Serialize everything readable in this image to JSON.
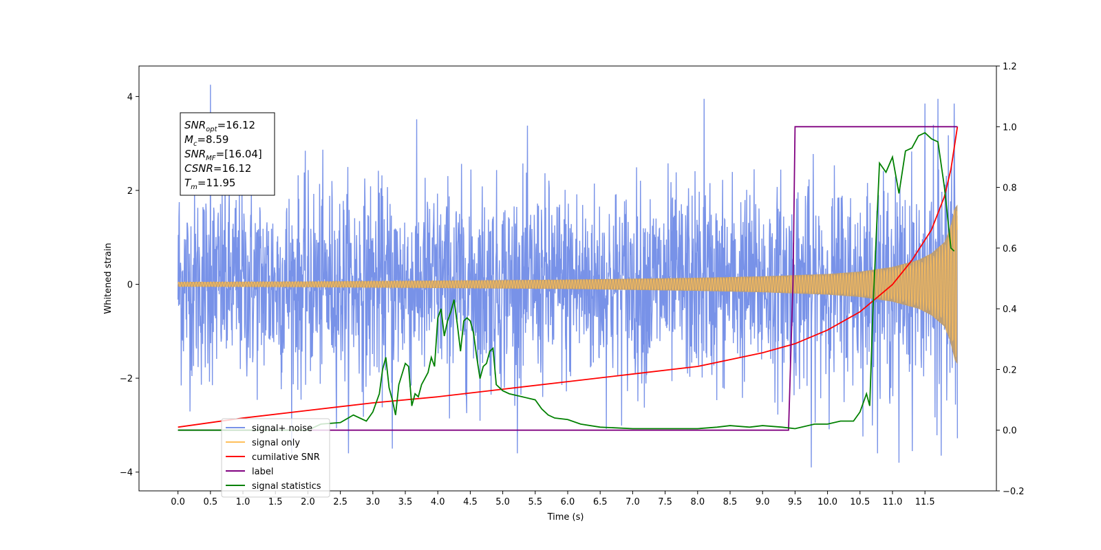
{
  "chart_data": {
    "type": "line",
    "xlabel": "Time (s)",
    "ylabel": "Whitened strain",
    "xlim": [
      -0.6,
      12.6
    ],
    "ylim": [
      -4.4,
      4.65
    ],
    "y2lim": [
      -0.2,
      1.2
    ],
    "x_ticks": [
      0.0,
      0.5,
      1.0,
      1.5,
      2.0,
      2.5,
      3.0,
      3.5,
      4.0,
      4.5,
      5.0,
      5.5,
      6.0,
      6.5,
      7.0,
      7.5,
      8.0,
      8.5,
      9.0,
      9.5,
      10.0,
      10.5,
      11.0,
      11.5
    ],
    "x_tick_labels": [
      "0.0",
      "0.5",
      "1.0",
      "1.5",
      "2.0",
      "2.5",
      "3.0",
      "3.5",
      "4.0",
      "4.5",
      "5.0",
      "5.5",
      "6.0",
      "6.5",
      "7.0",
      "7.5",
      "8.0",
      "8.5",
      "9.0",
      "9.5",
      "10.0",
      "10.5",
      "11.0",
      "11.5"
    ],
    "y_ticks": [
      -4,
      -2,
      0,
      2,
      4
    ],
    "y_tick_labels": [
      "−4",
      "−2",
      "0",
      "2",
      "4"
    ],
    "y2_ticks": [
      -0.2,
      0.0,
      0.2,
      0.4,
      0.6,
      0.8,
      1.0,
      1.2
    ],
    "y2_tick_labels": [
      "−0.2",
      "0.0",
      "0.2",
      "0.4",
      "0.6",
      "0.8",
      "1.0",
      "1.2"
    ],
    "grid": false,
    "legend_position": "lower-left",
    "annotation": {
      "lines": [
        {
          "base": "SNR",
          "sub": "opt",
          "rest": "=16.12"
        },
        {
          "base": "M",
          "sub": "c",
          "rest": "=8.59"
        },
        {
          "base": "SNR",
          "sub": "MF",
          "rest": "=[16.04]"
        },
        {
          "base": "CSNR",
          "sub": "",
          "rest": "=16.12"
        },
        {
          "base": "T",
          "sub": "m",
          "rest": "=11.95"
        }
      ]
    },
    "series": [
      {
        "name": "signal+ noise",
        "color": "#7892e8",
        "axis": "left",
        "description_noise_sigma": 1.0,
        "x_range": [
          0.0,
          12.0
        ],
        "peaks": [
          [
            0.5,
            4.25
          ],
          [
            0.02,
            1.75
          ],
          [
            3.3,
            -3.5
          ],
          [
            9.75,
            -3.9
          ],
          [
            11.1,
            -3.8
          ],
          [
            11.75,
            -3.65
          ],
          [
            11.95,
            -3.45
          ],
          [
            11.7,
            3.95
          ],
          [
            11.95,
            3.85
          ],
          [
            8.1,
            3.95
          ],
          [
            11.5,
            3.85
          ]
        ]
      },
      {
        "name": "signal only",
        "color": "#ffbf5a",
        "axis": "left",
        "envelope": {
          "x": [
            0.0,
            2.0,
            4.0,
            6.0,
            8.0,
            9.0,
            10.0,
            10.5,
            11.0,
            11.4,
            11.6,
            11.8,
            11.9,
            11.95,
            12.0
          ],
          "amplitude": [
            0.05,
            0.06,
            0.08,
            0.1,
            0.14,
            0.17,
            0.22,
            0.27,
            0.37,
            0.52,
            0.66,
            0.9,
            1.25,
            1.6,
            1.7
          ]
        }
      },
      {
        "name": "cumilative SNR",
        "color": "#ff0000",
        "axis": "right",
        "x": [
          0.0,
          1.0,
          2.0,
          3.0,
          4.0,
          5.0,
          6.0,
          7.0,
          8.0,
          9.0,
          9.5,
          10.0,
          10.5,
          11.0,
          11.3,
          11.6,
          11.8,
          11.9,
          11.95,
          12.0
        ],
        "y": [
          0.01,
          0.04,
          0.065,
          0.09,
          0.11,
          0.135,
          0.16,
          0.185,
          0.21,
          0.255,
          0.285,
          0.33,
          0.39,
          0.48,
          0.56,
          0.66,
          0.77,
          0.86,
          0.93,
          1.0
        ]
      },
      {
        "name": "label",
        "color": "#800080",
        "axis": "right",
        "x": [
          0.0,
          9.4,
          9.47,
          9.5,
          12.0
        ],
        "y": [
          0.0,
          0.0,
          0.5,
          1.0,
          1.0
        ]
      },
      {
        "name": "signal statistics",
        "color": "#008000",
        "axis": "right",
        "x": [
          0.0,
          1.0,
          2.0,
          2.2,
          2.5,
          2.7,
          2.9,
          3.0,
          3.1,
          3.15,
          3.2,
          3.25,
          3.3,
          3.35,
          3.4,
          3.5,
          3.55,
          3.6,
          3.65,
          3.7,
          3.75,
          3.8,
          3.85,
          3.9,
          3.95,
          4.0,
          4.05,
          4.1,
          4.15,
          4.2,
          4.25,
          4.3,
          4.35,
          4.4,
          4.45,
          4.5,
          4.55,
          4.6,
          4.65,
          4.7,
          4.75,
          4.8,
          4.85,
          4.9,
          4.95,
          5.0,
          5.1,
          5.3,
          5.5,
          5.6,
          5.7,
          5.8,
          6.0,
          6.2,
          6.5,
          7.0,
          7.5,
          8.0,
          8.3,
          8.5,
          8.8,
          9.0,
          9.3,
          9.5,
          9.8,
          10.0,
          10.2,
          10.4,
          10.5,
          10.6,
          10.65,
          10.7,
          10.8,
          10.9,
          11.0,
          11.1,
          11.2,
          11.3,
          11.4,
          11.5,
          11.6,
          11.7,
          11.8,
          11.9,
          11.95
        ],
        "y": [
          0.0,
          0.0,
          0.0,
          0.02,
          0.025,
          0.05,
          0.03,
          0.06,
          0.12,
          0.2,
          0.24,
          0.14,
          0.1,
          0.05,
          0.15,
          0.22,
          0.21,
          0.08,
          0.12,
          0.11,
          0.15,
          0.17,
          0.19,
          0.24,
          0.21,
          0.37,
          0.4,
          0.31,
          0.36,
          0.39,
          0.43,
          0.35,
          0.26,
          0.36,
          0.37,
          0.36,
          0.32,
          0.24,
          0.17,
          0.21,
          0.22,
          0.26,
          0.27,
          0.15,
          0.14,
          0.13,
          0.12,
          0.11,
          0.1,
          0.07,
          0.05,
          0.04,
          0.035,
          0.02,
          0.01,
          0.005,
          0.005,
          0.005,
          0.01,
          0.015,
          0.01,
          0.015,
          0.01,
          0.005,
          0.02,
          0.02,
          0.03,
          0.03,
          0.06,
          0.12,
          0.08,
          0.4,
          0.88,
          0.85,
          0.9,
          0.78,
          0.92,
          0.93,
          0.97,
          0.98,
          0.96,
          0.95,
          0.8,
          0.6,
          0.59
        ]
      }
    ]
  }
}
